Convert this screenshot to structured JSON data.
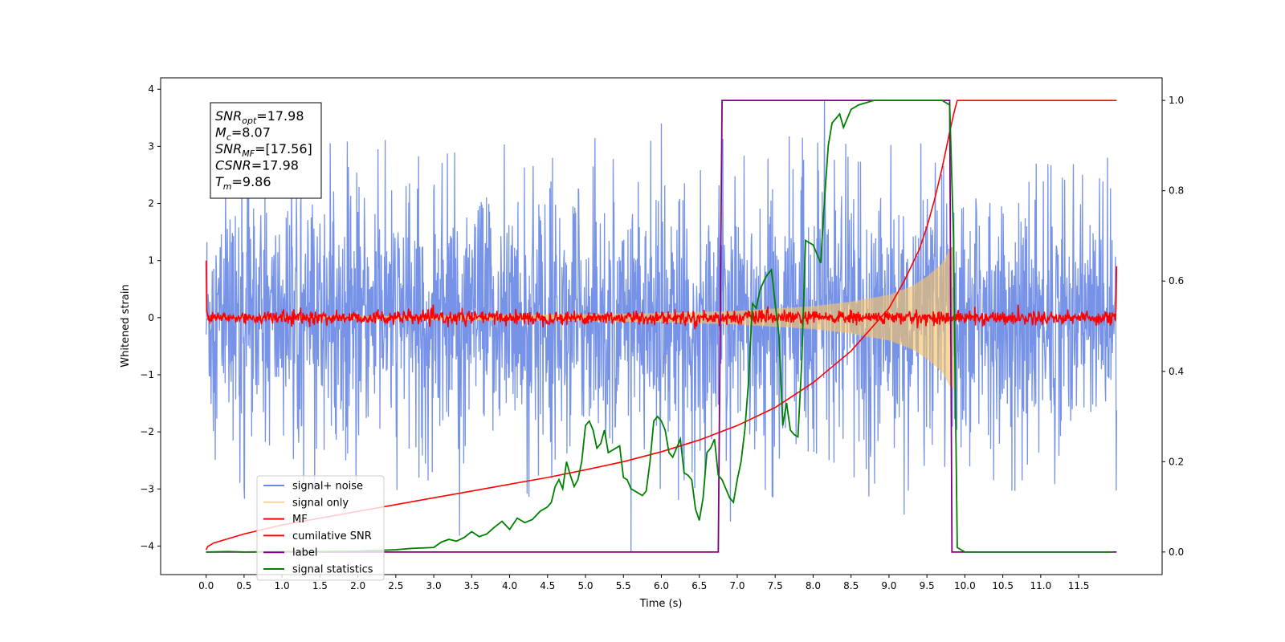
{
  "chart_data": {
    "type": "line",
    "xlabel": "Time (s)",
    "ylabel": "Whitened strain",
    "xlim": [
      -0.6,
      12.6
    ],
    "ylim": [
      -4.5,
      4.2
    ],
    "y2lim": [
      -0.05,
      1.05
    ],
    "x_ticks": [
      0.0,
      0.5,
      1.0,
      1.5,
      2.0,
      2.5,
      3.0,
      3.5,
      4.0,
      4.5,
      5.0,
      5.5,
      6.0,
      6.5,
      7.0,
      7.5,
      8.0,
      8.5,
      9.0,
      9.5,
      10.0,
      10.5,
      11.0,
      11.5
    ],
    "x_tick_labels": [
      "0.0",
      "0.5",
      "1.0",
      "1.5",
      "2.0",
      "2.5",
      "3.0",
      "3.5",
      "4.0",
      "4.5",
      "5.0",
      "5.5",
      "6.0",
      "6.5",
      "7.0",
      "7.5",
      "8.0",
      "8.5",
      "9.0",
      "9.5",
      "10.0",
      "10.5",
      "11.0",
      "11.5"
    ],
    "y_ticks": [
      4,
      3,
      2,
      1,
      0,
      -1,
      -2,
      -3,
      -4
    ],
    "y_tick_labels": [
      "4",
      "3",
      "2",
      "1",
      "0",
      "−1",
      "−2",
      "−3",
      "−4"
    ],
    "y2_ticks": [
      1.0,
      0.8,
      0.6,
      0.4,
      0.2,
      0.0
    ],
    "y2_tick_labels": [
      "1.0",
      "0.8",
      "0.6",
      "0.4",
      "0.2",
      "0.0"
    ],
    "grid": false,
    "legend_position": "lower-left",
    "annotation": [
      {
        "symbol": "SNR",
        "sub": "opt",
        "value": "=17.98"
      },
      {
        "symbol": "M",
        "sub": "c",
        "value": "=8.07"
      },
      {
        "symbol": "SNR",
        "sub": "MF",
        "value": "=[17.56]"
      },
      {
        "symbol": "CSNR",
        "sub": "",
        "value": "=17.98"
      },
      {
        "symbol": "T",
        "sub": "m",
        "value": "=9.86"
      }
    ],
    "series": [
      {
        "name": "signal+ noise",
        "color": "#6b8ae6",
        "axis": "left",
        "kind": "noise",
        "x_start": 0.0,
        "x_end": 12.0,
        "envelope": 1.0,
        "spikes_to": 3.2,
        "notable_extremes": [
          [
            5.6,
            -4.15
          ],
          [
            6.0,
            3.4
          ],
          [
            8.15,
            3.8
          ],
          [
            9.2,
            -3.45
          ]
        ]
      },
      {
        "name": "signal only",
        "color": "#f4c36b",
        "axis": "left",
        "kind": "chirp",
        "x_start": 0.0,
        "x_end": 9.86,
        "envelope_points": [
          [
            0.0,
            0.02
          ],
          [
            2.0,
            0.03
          ],
          [
            4.0,
            0.05
          ],
          [
            5.0,
            0.06
          ],
          [
            6.0,
            0.08
          ],
          [
            7.0,
            0.12
          ],
          [
            8.0,
            0.2
          ],
          [
            8.5,
            0.28
          ],
          [
            9.0,
            0.4
          ],
          [
            9.3,
            0.55
          ],
          [
            9.5,
            0.72
          ],
          [
            9.7,
            0.95
          ],
          [
            9.8,
            1.2
          ],
          [
            9.86,
            1.25
          ]
        ]
      },
      {
        "name": "MF",
        "color": "#ff0000",
        "axis": "left",
        "kind": "mf",
        "x_start": 0.0,
        "x_end": 12.0,
        "level": 0.0,
        "spread": 0.06,
        "edge_start": 1.0,
        "edge_end": 0.9
      },
      {
        "name": "cumilative SNR",
        "color": "#ff0000",
        "axis": "right",
        "x": [
          0.0,
          0.02,
          0.1,
          0.5,
          1.0,
          1.5,
          2.0,
          2.5,
          3.0,
          3.5,
          4.0,
          4.5,
          5.0,
          5.5,
          6.0,
          6.5,
          7.0,
          7.5,
          8.0,
          8.5,
          9.0,
          9.2,
          9.4,
          9.5,
          9.6,
          9.7,
          9.8,
          9.86,
          9.9,
          12.0
        ],
        "y": [
          0.005,
          0.012,
          0.02,
          0.04,
          0.06,
          0.075,
          0.09,
          0.105,
          0.12,
          0.135,
          0.15,
          0.165,
          0.182,
          0.2,
          0.222,
          0.248,
          0.28,
          0.32,
          0.375,
          0.445,
          0.54,
          0.6,
          0.67,
          0.72,
          0.78,
          0.85,
          0.93,
          0.975,
          1.0,
          1.0
        ]
      },
      {
        "name": "label",
        "color": "#800080",
        "axis": "right",
        "x": [
          0.0,
          6.75,
          6.8,
          9.8,
          9.83,
          12.0
        ],
        "y": [
          0.0,
          0.0,
          1.0,
          1.0,
          0.0,
          0.0
        ]
      },
      {
        "name": "signal statistics",
        "color": "#008000",
        "axis": "right",
        "x": [
          0.0,
          0.3,
          0.5,
          1.0,
          1.5,
          2.0,
          2.5,
          2.7,
          3.0,
          3.1,
          3.2,
          3.3,
          3.4,
          3.5,
          3.6,
          3.7,
          3.8,
          3.9,
          4.0,
          4.1,
          4.2,
          4.3,
          4.4,
          4.5,
          4.55,
          4.6,
          4.65,
          4.7,
          4.75,
          4.8,
          4.85,
          4.9,
          4.95,
          5.0,
          5.05,
          5.1,
          5.15,
          5.2,
          5.25,
          5.3,
          5.35,
          5.4,
          5.45,
          5.5,
          5.55,
          5.6,
          5.65,
          5.7,
          5.75,
          5.8,
          5.85,
          5.9,
          5.95,
          6.0,
          6.05,
          6.1,
          6.15,
          6.2,
          6.25,
          6.3,
          6.35,
          6.4,
          6.45,
          6.5,
          6.55,
          6.6,
          6.65,
          6.7,
          6.75,
          6.8,
          6.85,
          6.9,
          6.95,
          7.0,
          7.05,
          7.1,
          7.15,
          7.2,
          7.25,
          7.3,
          7.35,
          7.4,
          7.45,
          7.5,
          7.55,
          7.6,
          7.65,
          7.7,
          7.75,
          7.8,
          7.85,
          7.9,
          8.0,
          8.05,
          8.1,
          8.15,
          8.2,
          8.25,
          8.3,
          8.35,
          8.4,
          8.5,
          8.6,
          8.8,
          9.0,
          9.2,
          9.5,
          9.7,
          9.8,
          9.85,
          9.9,
          10.0,
          10.5,
          11.0,
          11.5,
          11.95
        ],
        "y": [
          0.0,
          0.001,
          0.0,
          0.001,
          0.001,
          0.002,
          0.005,
          0.008,
          0.01,
          0.022,
          0.028,
          0.024,
          0.032,
          0.045,
          0.034,
          0.04,
          0.055,
          0.068,
          0.05,
          0.075,
          0.065,
          0.072,
          0.09,
          0.1,
          0.11,
          0.145,
          0.16,
          0.14,
          0.2,
          0.17,
          0.145,
          0.16,
          0.2,
          0.28,
          0.29,
          0.27,
          0.23,
          0.24,
          0.27,
          0.22,
          0.225,
          0.23,
          0.235,
          0.165,
          0.16,
          0.14,
          0.135,
          0.13,
          0.125,
          0.135,
          0.2,
          0.29,
          0.3,
          0.29,
          0.27,
          0.22,
          0.21,
          0.23,
          0.25,
          0.175,
          0.17,
          0.16,
          0.095,
          0.07,
          0.12,
          0.22,
          0.23,
          0.25,
          0.17,
          0.16,
          0.14,
          0.12,
          0.11,
          0.16,
          0.2,
          0.27,
          0.38,
          0.55,
          0.54,
          0.58,
          0.6,
          0.615,
          0.625,
          0.55,
          0.48,
          0.28,
          0.33,
          0.27,
          0.26,
          0.255,
          0.42,
          0.69,
          0.68,
          0.66,
          0.64,
          0.78,
          0.9,
          0.95,
          0.96,
          0.97,
          0.94,
          0.98,
          0.99,
          1.0,
          1.0,
          1.0,
          1.0,
          1.0,
          0.99,
          0.7,
          0.01,
          0.0,
          0.0,
          0.0,
          0.0,
          0.0
        ]
      }
    ]
  }
}
